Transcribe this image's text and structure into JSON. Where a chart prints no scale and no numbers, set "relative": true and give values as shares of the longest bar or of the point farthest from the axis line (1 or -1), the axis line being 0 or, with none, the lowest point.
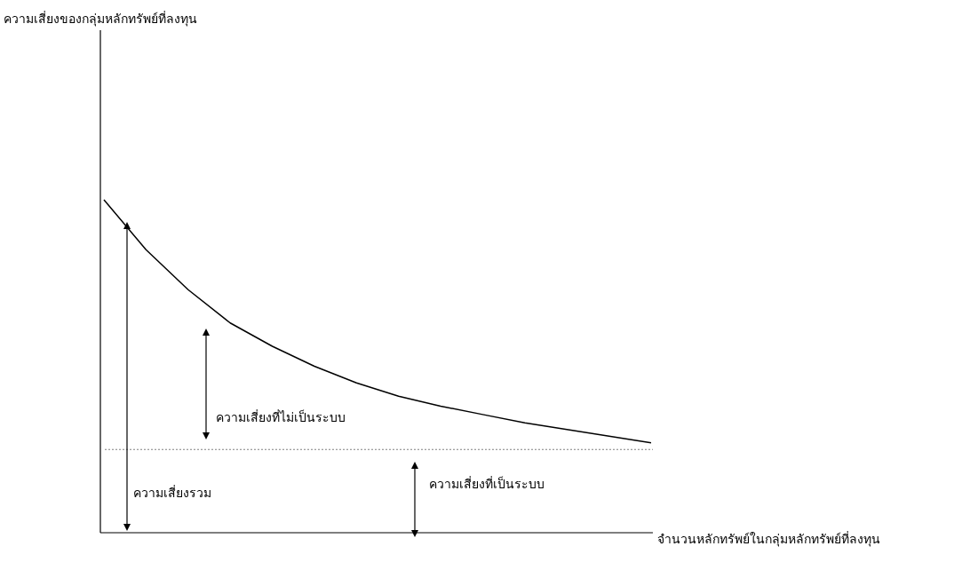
{
  "chart_data": {
    "type": "line",
    "relative": true,
    "xlabel": "จำนวนหลักทรัพย์ในกลุ่มหลักทรัพย์ที่ลงทุน",
    "categories": [
      null,
      null,
      null,
      null,
      null,
      null,
      null,
      null,
      null,
      null,
      null,
      null,
      null,
      null
    ],
    "values": [
      1.0,
      0.85,
      0.73,
      0.63,
      0.56,
      0.5,
      0.45,
      0.41,
      0.38,
      0.355,
      0.33,
      0.31,
      0.29,
      0.27
    ],
    "color": "#000000",
    "ref_lines": [
      {
        "axis": "y",
        "value": 0.25,
        "color": "#808080",
        "line_style": "dotted"
      }
    ],
    "annotations": [
      "ความเสี่ยงของกลุ่มหลักทรัพย์ที่ลงทุน",
      "ความเสี่ยงที่ไม่เป็นระบบ",
      "ความเสี่ยงรวม",
      "ความเสี่ยงที่เป็นระบบ"
    ]
  }
}
